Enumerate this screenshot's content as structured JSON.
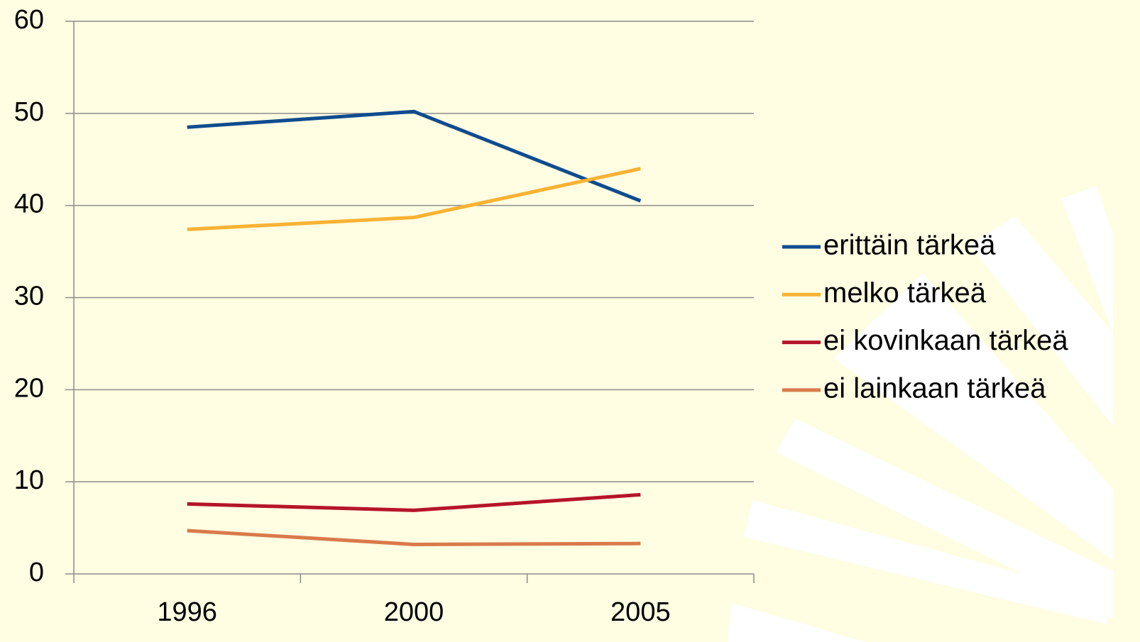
{
  "chart_data": {
    "type": "line",
    "categories": [
      "1996",
      "2000",
      "2005"
    ],
    "series": [
      {
        "name": "erittäin tärkeä",
        "color": "#0f4c8f",
        "values": [
          48.5,
          50.2,
          40.5
        ]
      },
      {
        "name": "melko tärkeä",
        "color": "#f9b233",
        "values": [
          37.4,
          38.7,
          44.0
        ]
      },
      {
        "name": "ei kovinkaan tärkeä",
        "color": "#b5142a",
        "values": [
          7.6,
          6.9,
          8.6
        ]
      },
      {
        "name": "ei lainkaan tärkeä",
        "color": "#d97a4a",
        "values": [
          4.7,
          3.2,
          3.3
        ]
      }
    ],
    "ylim": [
      0,
      60
    ],
    "yticks": [
      0,
      10,
      20,
      30,
      40,
      50,
      60
    ],
    "grid": true,
    "legend": "right"
  }
}
